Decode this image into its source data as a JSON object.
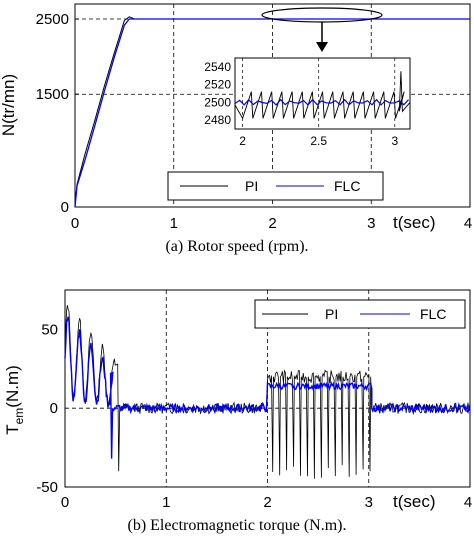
{
  "chart_data": [
    {
      "type": "line",
      "caption": "(a) Rotor speed (rpm).",
      "ylabel": "N(tr/mn)",
      "xlabel": "t(sec)",
      "xlim": [
        0,
        4
      ],
      "ylim": [
        0,
        2700
      ],
      "x_ticks": [
        "0",
        "1",
        "2",
        "3",
        "4"
      ],
      "y_ticks": [
        "0",
        "1500",
        "2500"
      ],
      "y_tick_values": [
        0,
        1500,
        2500
      ],
      "grid": "dashed at x=1,2,3 and y=1500,2500",
      "legend": {
        "placement": "bottom-right",
        "entries": [
          "PI",
          "FLC"
        ]
      },
      "series": [
        {
          "name": "PI",
          "color": "#000000",
          "x": [
            0,
            0.02,
            0.1,
            0.2,
            0.3,
            0.4,
            0.5,
            0.55,
            0.6,
            1.0,
            2.0,
            3.0,
            4.0
          ],
          "y": [
            0,
            300,
            700,
            1150,
            1620,
            2060,
            2480,
            2530,
            2500,
            2500,
            2500,
            2500,
            2500
          ]
        },
        {
          "name": "FLC",
          "color": "#0000ff",
          "x": [
            0,
            0.02,
            0.1,
            0.2,
            0.3,
            0.4,
            0.5,
            0.55,
            1.0,
            2.0,
            3.0,
            4.0
          ],
          "y": [
            0,
            280,
            620,
            1080,
            1550,
            2000,
            2420,
            2500,
            2500,
            2500,
            2500,
            2500
          ]
        }
      ],
      "inset": {
        "xlim": [
          1.95,
          3.1
        ],
        "ylim": [
          2470,
          2550
        ],
        "x_ticks": [
          "2",
          "2.5",
          "3"
        ],
        "x_tick_values": [
          2,
          2.5,
          3
        ],
        "y_ticks": [
          "2480",
          "2500",
          "2520",
          "2540"
        ],
        "y_tick_values": [
          2480,
          2500,
          2520,
          2540
        ],
        "pi_oscillation": {
          "start": 2.0,
          "end": 3.02,
          "period": 0.067,
          "min": 2482,
          "max": 2512
        },
        "pi_spike": {
          "x": 3.04,
          "y": 2535
        },
        "flc": {
          "start_value": 2500,
          "ripple": 3
        }
      }
    },
    {
      "type": "line",
      "caption": "(b) Electromagnetic torque (N.m).",
      "ylabel": "T",
      "ylabel_sub": "em",
      "ylabel_unit": "(N.m)",
      "xlabel": "t(sec)",
      "xlim": [
        0,
        4
      ],
      "ylim": [
        -50,
        75
      ],
      "x_ticks": [
        "0",
        "1",
        "2",
        "3",
        "4"
      ],
      "y_ticks": [
        "-50",
        "0",
        "50"
      ],
      "y_tick_values": [
        -50,
        0,
        50
      ],
      "grid": "dashed at x=1,2,3 and y=0",
      "legend": {
        "placement": "top-right",
        "entries": [
          "PI",
          "FLC"
        ]
      },
      "series": [
        {
          "name": "PI",
          "color": "#000000",
          "startup": {
            "peak": 68,
            "decay_to": 28,
            "end": 0.5
          },
          "dip": {
            "x": 0.53,
            "y": -40
          },
          "load": {
            "start": 2.0,
            "end": 3.03,
            "level": 20,
            "dips_to": -45,
            "count": 15
          }
        },
        {
          "name": "FLC",
          "color": "#0000ff",
          "startup": {
            "peak": 60,
            "decay_to": 22,
            "end": 0.48
          },
          "dip": {
            "x": 0.46,
            "y": -32
          },
          "load": {
            "start": 2.0,
            "end": 3.03,
            "level": 14
          }
        }
      ]
    }
  ]
}
